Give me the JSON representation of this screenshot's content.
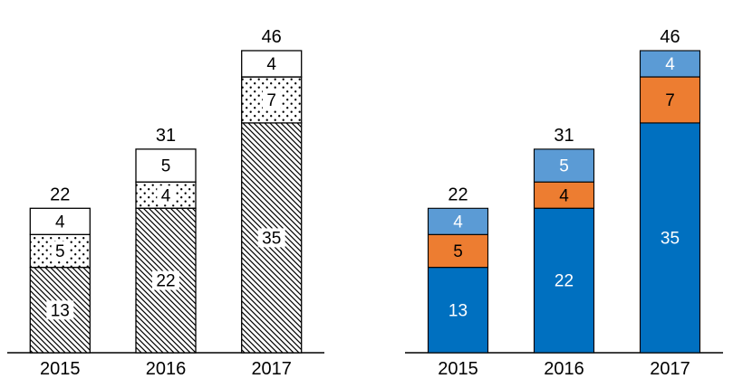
{
  "page": {
    "background_color": "#ffffff",
    "text_color": "#000000"
  },
  "chart_data": [
    {
      "type": "bar",
      "subtype": "stacked",
      "variant": "pattern-fill-monochrome",
      "title": "",
      "xlabel": "",
      "ylabel": "",
      "categories": [
        "2015",
        "2016",
        "2017"
      ],
      "series": [
        {
          "name": "bottom-segment",
          "values": [
            13,
            22,
            35
          ],
          "fill": "diagonal-hatch",
          "label_color": "#000000",
          "label_bg": "#ffffff"
        },
        {
          "name": "middle-segment",
          "values": [
            5,
            4,
            7
          ],
          "fill": "dots",
          "label_color": "#000000",
          "label_bg": "#ffffff"
        },
        {
          "name": "top-segment",
          "values": [
            4,
            5,
            4
          ],
          "fill": "white",
          "label_color": "#000000",
          "label_bg": "none"
        }
      ],
      "totals": [
        22,
        31,
        46
      ],
      "ylim": [
        0,
        48
      ],
      "grid": false,
      "legend": "none",
      "axis_color": "#000000",
      "bar_border_color": "#000000",
      "label_color": "#000000"
    },
    {
      "type": "bar",
      "subtype": "stacked",
      "variant": "color-fill",
      "title": "",
      "xlabel": "",
      "ylabel": "",
      "categories": [
        "2015",
        "2016",
        "2017"
      ],
      "series": [
        {
          "name": "bottom-segment",
          "values": [
            13,
            22,
            35
          ],
          "fill": "#0070C0",
          "label_color": "#ffffff",
          "label_bg": "none"
        },
        {
          "name": "middle-segment",
          "values": [
            5,
            4,
            7
          ],
          "fill": "#ED7D31",
          "label_color": "#000000",
          "label_bg": "none"
        },
        {
          "name": "top-segment",
          "values": [
            4,
            5,
            4
          ],
          "fill": "#5B9BD5",
          "label_color": "#ffffff",
          "label_bg": "none"
        }
      ],
      "totals": [
        22,
        31,
        46
      ],
      "ylim": [
        0,
        48
      ],
      "grid": false,
      "legend": "none",
      "axis_color": "#000000",
      "bar_border_color": "#000000",
      "label_color": "#000000"
    }
  ]
}
